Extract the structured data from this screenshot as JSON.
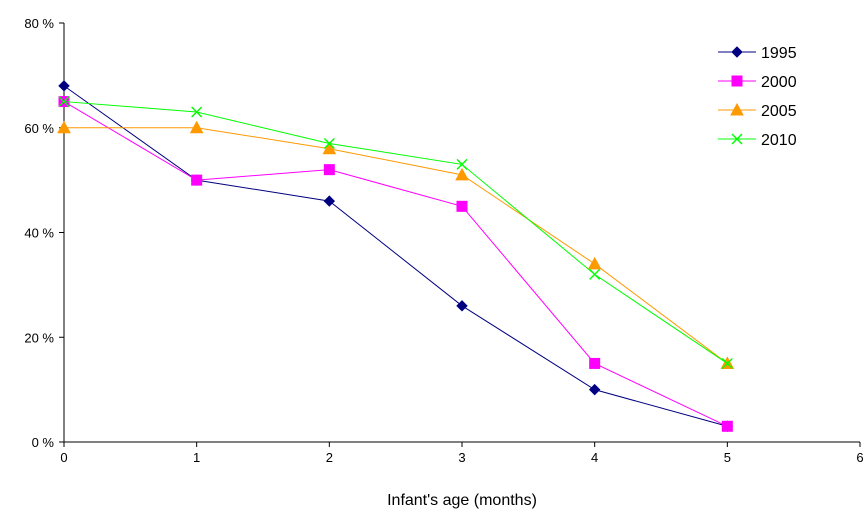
{
  "chart_data": {
    "type": "line",
    "title": "",
    "xlabel": "Infant's age (months)",
    "ylabel": "",
    "xlim": [
      0,
      6
    ],
    "ylim": [
      0,
      80
    ],
    "x_ticks": [
      "0",
      "1",
      "2",
      "3",
      "4",
      "5",
      "6"
    ],
    "y_ticks": [
      "0 %",
      "20 %",
      "40 %",
      "60 %",
      "80 %"
    ],
    "grid": false,
    "legend_position": "top-right",
    "x": [
      0,
      1,
      2,
      3,
      4,
      5
    ],
    "series": [
      {
        "name": "1995",
        "values": [
          68,
          50,
          46,
          26,
          10,
          3
        ],
        "color": "#000080",
        "marker": "diamond"
      },
      {
        "name": "2000",
        "values": [
          65,
          50,
          52,
          45,
          15,
          3
        ],
        "color": "#ff00ff",
        "marker": "square"
      },
      {
        "name": "2005",
        "values": [
          60,
          60,
          56,
          51,
          34,
          15
        ],
        "color": "#ff9900",
        "marker": "triangle"
      },
      {
        "name": "2010",
        "values": [
          65,
          63,
          57,
          53,
          32,
          15
        ],
        "color": "#00ff00",
        "marker": "x"
      }
    ]
  }
}
